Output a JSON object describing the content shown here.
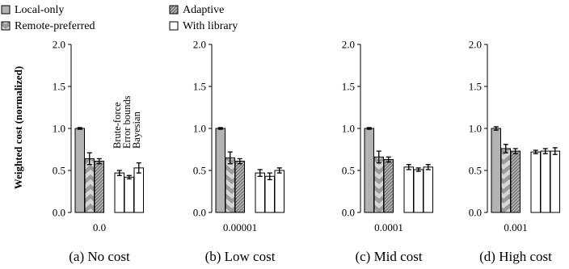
{
  "legend": [
    {
      "label": "Local-only",
      "pattern": "gray"
    },
    {
      "label": "Adaptive",
      "pattern": "hatch-dark"
    },
    {
      "label": "Remote-preferred",
      "pattern": "chevron"
    },
    {
      "label": "With library",
      "pattern": "white"
    }
  ],
  "colors": {
    "bar_gray": "#b3b3b3",
    "chevron_dark": "#9a9a9a",
    "chevron_light": "#d6d6d6",
    "white": "#ffffff",
    "stroke": "#000000"
  },
  "ylabel": "Weighted cost (normalized)",
  "library_labels": [
    "Brute-force",
    "Error bounds",
    "Bayesian"
  ],
  "chart_data": [
    {
      "type": "bar",
      "caption": "(a) No cost",
      "xtick": "0.0",
      "ylim": [
        0,
        2.0
      ],
      "yticks": [
        "0.0",
        "0.5",
        "1.0",
        "1.5",
        "2.0"
      ],
      "series": [
        {
          "name": "Local-only",
          "values": [
            1.0
          ],
          "errors": [
            0.01
          ]
        },
        {
          "name": "Remote-preferred",
          "values": [
            0.64
          ],
          "errors": [
            0.07
          ]
        },
        {
          "name": "Adaptive",
          "values": [
            0.61
          ],
          "errors": [
            0.03
          ]
        },
        {
          "name": "Brute-force",
          "values": [
            0.47
          ],
          "errors": [
            0.03
          ]
        },
        {
          "name": "Error bounds",
          "values": [
            0.42
          ],
          "errors": [
            0.02
          ]
        },
        {
          "name": "Bayesian",
          "values": [
            0.53
          ],
          "errors": [
            0.06
          ]
        }
      ]
    },
    {
      "type": "bar",
      "caption": "(b) Low cost",
      "xtick": "0.00001",
      "ylim": [
        0,
        2.0
      ],
      "yticks": [
        "0.0",
        "0.5",
        "1.0",
        "1.5",
        "2.0"
      ],
      "series": [
        {
          "name": "Local-only",
          "values": [
            1.0
          ],
          "errors": [
            0.01
          ]
        },
        {
          "name": "Remote-preferred",
          "values": [
            0.65
          ],
          "errors": [
            0.07
          ]
        },
        {
          "name": "Adaptive",
          "values": [
            0.61
          ],
          "errors": [
            0.03
          ]
        },
        {
          "name": "Brute-force",
          "values": [
            0.47
          ],
          "errors": [
            0.04
          ]
        },
        {
          "name": "Error bounds",
          "values": [
            0.43
          ],
          "errors": [
            0.04
          ]
        },
        {
          "name": "Bayesian",
          "values": [
            0.5
          ],
          "errors": [
            0.03
          ]
        }
      ]
    },
    {
      "type": "bar",
      "caption": "(c) Mid cost",
      "xtick": "0.0001",
      "ylim": [
        0,
        2.0
      ],
      "yticks": [
        "0.0",
        "0.5",
        "1.0",
        "1.5",
        "2.0"
      ],
      "series": [
        {
          "name": "Local-only",
          "values": [
            1.0
          ],
          "errors": [
            0.01
          ]
        },
        {
          "name": "Remote-preferred",
          "values": [
            0.66
          ],
          "errors": [
            0.07
          ]
        },
        {
          "name": "Adaptive",
          "values": [
            0.63
          ],
          "errors": [
            0.03
          ]
        },
        {
          "name": "Brute-force",
          "values": [
            0.54
          ],
          "errors": [
            0.03
          ]
        },
        {
          "name": "Error bounds",
          "values": [
            0.51
          ],
          "errors": [
            0.02
          ]
        },
        {
          "name": "Bayesian",
          "values": [
            0.54
          ],
          "errors": [
            0.03
          ]
        }
      ]
    },
    {
      "type": "bar",
      "caption": "(d) High cost",
      "xtick": "0.001",
      "ylim": [
        0,
        2.0
      ],
      "yticks": [
        "0.0",
        "0.5",
        "1.0",
        "1.5",
        "2.0"
      ],
      "series": [
        {
          "name": "Local-only",
          "values": [
            1.0
          ],
          "errors": [
            0.02
          ]
        },
        {
          "name": "Remote-preferred",
          "values": [
            0.76
          ],
          "errors": [
            0.05
          ]
        },
        {
          "name": "Adaptive",
          "values": [
            0.73
          ],
          "errors": [
            0.03
          ]
        },
        {
          "name": "Brute-force",
          "values": [
            0.72
          ],
          "errors": [
            0.02
          ]
        },
        {
          "name": "Error bounds",
          "values": [
            0.73
          ],
          "errors": [
            0.03
          ]
        },
        {
          "name": "Bayesian",
          "values": [
            0.73
          ],
          "errors": [
            0.04
          ]
        }
      ]
    }
  ]
}
